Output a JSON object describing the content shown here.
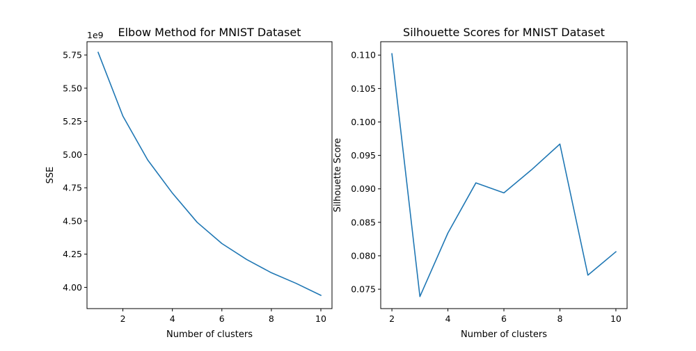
{
  "chart_data": [
    {
      "type": "line",
      "title": "Elbow Method for MNIST Dataset",
      "xlabel": "Number of clusters",
      "ylabel": "SSE",
      "y_offset_label": "1e9",
      "y_scale_factor": 1000000000,
      "xlim": [
        0.55,
        10.45
      ],
      "ylim": [
        3.84,
        5.85
      ],
      "xticks": [
        2,
        4,
        6,
        8,
        10
      ],
      "yticks": [
        4.0,
        4.25,
        4.5,
        4.75,
        5.0,
        5.25,
        5.5,
        5.75
      ],
      "ytick_labels": [
        "4.00",
        "4.25",
        "4.50",
        "4.75",
        "5.00",
        "5.25",
        "5.50",
        "5.75"
      ],
      "grid": false,
      "series": [
        {
          "color": "#1f77b4",
          "x": [
            1,
            2,
            3,
            4,
            5,
            6,
            7,
            8,
            9,
            10
          ],
          "y": [
            5.77,
            5.29,
            4.96,
            4.71,
            4.49,
            4.33,
            4.21,
            4.11,
            4.03,
            3.94
          ]
        }
      ]
    },
    {
      "type": "line",
      "title": "Silhouette Scores for MNIST Dataset",
      "xlabel": "Number of clusters",
      "ylabel": "Silhouette Score",
      "xlim": [
        1.6,
        10.4
      ],
      "ylim": [
        0.0721,
        0.112
      ],
      "xticks": [
        2,
        4,
        6,
        8,
        10
      ],
      "yticks": [
        0.075,
        0.08,
        0.085,
        0.09,
        0.095,
        0.1,
        0.105,
        0.11
      ],
      "ytick_labels": [
        "0.075",
        "0.080",
        "0.085",
        "0.090",
        "0.095",
        "0.100",
        "0.105",
        "0.110"
      ],
      "grid": false,
      "series": [
        {
          "color": "#1f77b4",
          "x": [
            2,
            3,
            4,
            5,
            6,
            7,
            8,
            9,
            10
          ],
          "y": [
            0.1102,
            0.0739,
            0.0834,
            0.0909,
            0.0894,
            0.0929,
            0.0967,
            0.0771,
            0.0806
          ]
        }
      ]
    }
  ]
}
